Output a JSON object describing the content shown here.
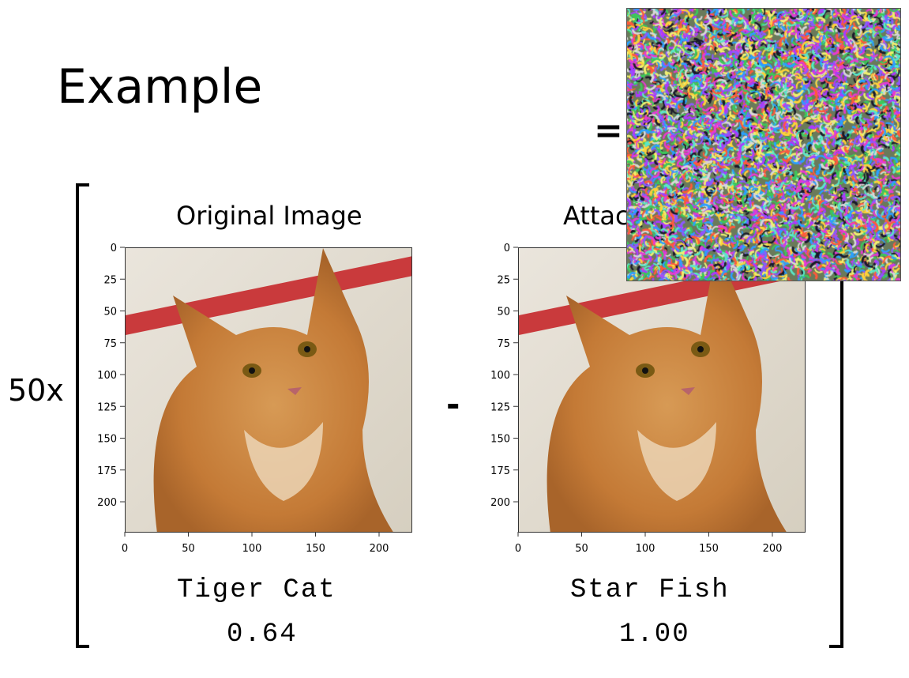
{
  "slide": {
    "title": "Example",
    "multiplier": "50x",
    "minus": "-",
    "equals": "="
  },
  "original": {
    "title": "Original Image",
    "label": "Tiger Cat",
    "score": "0.64",
    "y_ticks": [
      "0",
      "25",
      "50",
      "75",
      "100",
      "125",
      "150",
      "175",
      "200"
    ],
    "x_ticks": [
      "0",
      "50",
      "100",
      "150",
      "200"
    ]
  },
  "attacked": {
    "title": "Attac",
    "label": "Star Fish",
    "score": "1.00",
    "y_ticks": [
      "0",
      "25",
      "50",
      "75",
      "100",
      "125",
      "150",
      "175",
      "200"
    ],
    "x_ticks": [
      "0",
      "50",
      "100",
      "150",
      "200"
    ]
  }
}
